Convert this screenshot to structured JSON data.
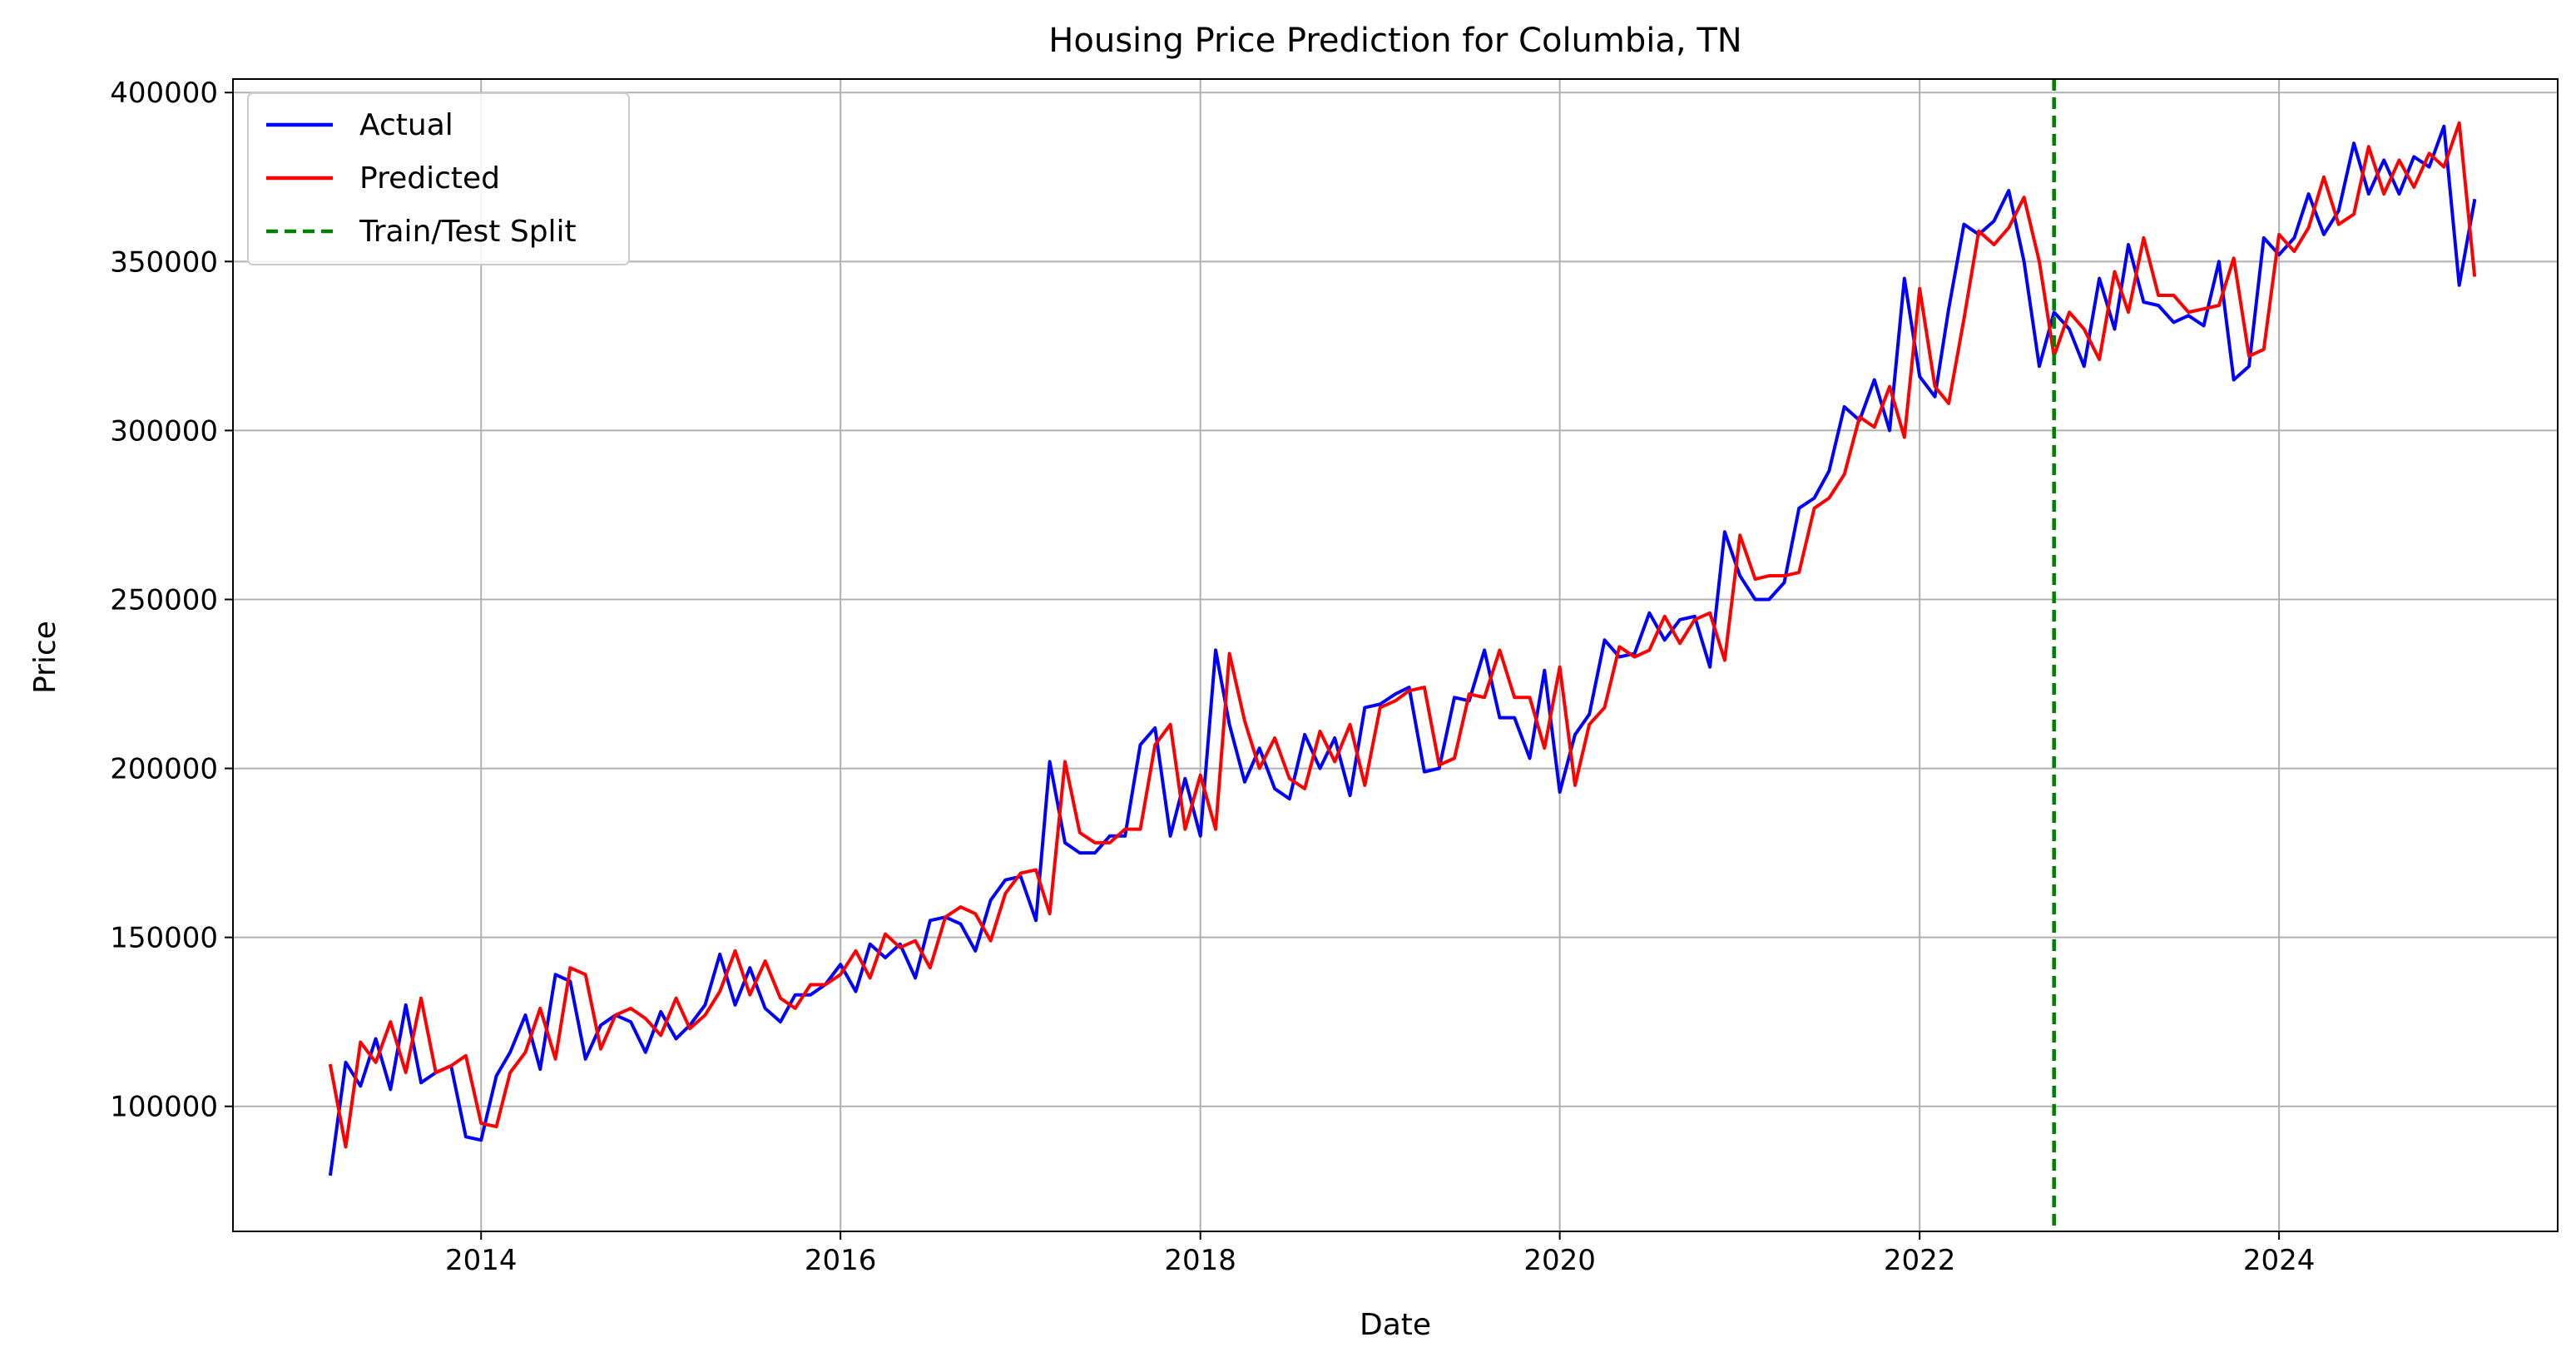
{
  "chart_data": {
    "type": "line",
    "title": "Housing Price Prediction for Columbia, TN",
    "xlabel": "Date",
    "ylabel": "Price",
    "x_axis_type": "date",
    "xlim": [
      "2012-08-15",
      "2025-07-20"
    ],
    "ylim": [
      63000,
      404000
    ],
    "x_ticks": [
      "2014",
      "2016",
      "2018",
      "2020",
      "2022",
      "2024"
    ],
    "y_ticks": [
      100000,
      150000,
      200000,
      250000,
      300000,
      350000,
      400000
    ],
    "grid": true,
    "legend_position": "top-left",
    "legend": [
      "Actual",
      "Predicted",
      "Train/Test Split"
    ],
    "split_date": "2022-10-01",
    "colors": {
      "actual": "#0000ff",
      "predicted": "#ff0000",
      "split": "#008000",
      "grid": "#b0b0b0"
    },
    "x": [
      "2013-03-01",
      "2013-04-01",
      "2013-05-01",
      "2013-06-01",
      "2013-07-01",
      "2013-08-01",
      "2013-09-01",
      "2013-10-01",
      "2013-11-01",
      "2013-12-01",
      "2014-01-01",
      "2014-02-01",
      "2014-03-01",
      "2014-04-01",
      "2014-05-01",
      "2014-06-01",
      "2014-07-01",
      "2014-08-01",
      "2014-09-01",
      "2014-10-01",
      "2014-11-01",
      "2014-12-01",
      "2015-01-01",
      "2015-02-01",
      "2015-03-01",
      "2015-04-01",
      "2015-05-01",
      "2015-06-01",
      "2015-07-01",
      "2015-08-01",
      "2015-09-01",
      "2015-10-01",
      "2015-11-01",
      "2015-12-01",
      "2016-01-01",
      "2016-02-01",
      "2016-03-01",
      "2016-04-01",
      "2016-05-01",
      "2016-06-01",
      "2016-07-01",
      "2016-08-01",
      "2016-09-01",
      "2016-10-01",
      "2016-11-01",
      "2016-12-01",
      "2017-01-01",
      "2017-02-01",
      "2017-03-01",
      "2017-04-01",
      "2017-05-01",
      "2017-06-01",
      "2017-07-01",
      "2017-08-01",
      "2017-09-01",
      "2017-10-01",
      "2017-11-01",
      "2017-12-01",
      "2018-01-01",
      "2018-02-01",
      "2018-03-01",
      "2018-04-01",
      "2018-05-01",
      "2018-06-01",
      "2018-07-01",
      "2018-08-01",
      "2018-09-01",
      "2018-10-01",
      "2018-11-01",
      "2018-12-01",
      "2019-01-01",
      "2019-02-01",
      "2019-03-01",
      "2019-04-01",
      "2019-05-01",
      "2019-06-01",
      "2019-07-01",
      "2019-08-01",
      "2019-09-01",
      "2019-10-01",
      "2019-11-01",
      "2019-12-01",
      "2020-01-01",
      "2020-02-01",
      "2020-03-01",
      "2020-04-01",
      "2020-05-01",
      "2020-06-01",
      "2020-07-01",
      "2020-08-01",
      "2020-09-01",
      "2020-10-01",
      "2020-11-01",
      "2020-12-01",
      "2021-01-01",
      "2021-02-01",
      "2021-03-01",
      "2021-04-01",
      "2021-05-01",
      "2021-06-01",
      "2021-07-01",
      "2021-08-01",
      "2021-09-01",
      "2021-10-01",
      "2021-11-01",
      "2021-12-01",
      "2022-01-01",
      "2022-02-01",
      "2022-03-01",
      "2022-04-01",
      "2022-05-01",
      "2022-06-01",
      "2022-07-01",
      "2022-08-01",
      "2022-09-01",
      "2022-10-01",
      "2022-11-01",
      "2022-12-01",
      "2023-01-01",
      "2023-02-01",
      "2023-03-01",
      "2023-04-01",
      "2023-05-01",
      "2023-06-01",
      "2023-07-01",
      "2023-08-01",
      "2023-09-01",
      "2023-10-01",
      "2023-11-01",
      "2023-12-01",
      "2024-01-01",
      "2024-02-01",
      "2024-03-01",
      "2024-04-01",
      "2024-05-01",
      "2024-06-01",
      "2024-07-01",
      "2024-08-01",
      "2024-09-01",
      "2024-10-01",
      "2024-11-01",
      "2024-12-01",
      "2025-01-01",
      "2025-02-01"
    ],
    "series": [
      {
        "name": "Actual",
        "values": [
          80000,
          113000,
          106000,
          120000,
          105000,
          130000,
          107000,
          110000,
          112000,
          91000,
          90000,
          109000,
          116000,
          127000,
          111000,
          139000,
          137000,
          114000,
          124000,
          127000,
          125000,
          116000,
          128000,
          120000,
          124000,
          130000,
          145000,
          130000,
          141000,
          129000,
          125000,
          133000,
          133000,
          136000,
          142000,
          134000,
          148000,
          144000,
          148000,
          138000,
          155000,
          156000,
          154000,
          146000,
          161000,
          167000,
          168000,
          155000,
          202000,
          178000,
          175000,
          175000,
          180000,
          180000,
          207000,
          212000,
          180000,
          197000,
          180000,
          235000,
          213000,
          196000,
          206000,
          194000,
          191000,
          210000,
          200000,
          209000,
          192000,
          218000,
          219000,
          222000,
          224000,
          199000,
          200000,
          221000,
          220000,
          235000,
          215000,
          215000,
          203000,
          229000,
          193000,
          210000,
          216000,
          238000,
          233000,
          234000,
          246000,
          238000,
          244000,
          245000,
          230000,
          270000,
          257000,
          250000,
          250000,
          255000,
          277000,
          280000,
          288000,
          307000,
          303000,
          315000,
          300000,
          345000,
          316000,
          310000,
          336000,
          361000,
          358000,
          362000,
          371000,
          350000,
          319000,
          335000,
          330000,
          319000,
          345000,
          330000,
          355000,
          338000,
          337000,
          332000,
          334000,
          331000,
          350000,
          315000,
          319000,
          357000,
          352000,
          357000,
          370000,
          358000,
          365000,
          385000,
          370000,
          380000,
          370000,
          381000,
          378000,
          390000,
          343000,
          368000
        ],
        "color": "#0000ff"
      },
      {
        "name": "Predicted",
        "values": [
          112000,
          88000,
          119000,
          113000,
          125000,
          110000,
          132000,
          110000,
          112000,
          115000,
          95000,
          94000,
          110000,
          116000,
          129000,
          114000,
          141000,
          139000,
          117000,
          127000,
          129000,
          126000,
          121000,
          132000,
          123000,
          127000,
          134000,
          146000,
          133000,
          143000,
          132000,
          129000,
          136000,
          136000,
          139000,
          146000,
          138000,
          151000,
          147000,
          149000,
          141000,
          156000,
          159000,
          157000,
          149000,
          163000,
          169000,
          170000,
          157000,
          202000,
          181000,
          178000,
          178000,
          182000,
          182000,
          207000,
          213000,
          182000,
          198000,
          182000,
          234000,
          214000,
          200000,
          209000,
          197000,
          194000,
          211000,
          202000,
          213000,
          195000,
          218000,
          220000,
          223000,
          224000,
          201000,
          203000,
          222000,
          221000,
          235000,
          221000,
          221000,
          206000,
          230000,
          195000,
          213000,
          218000,
          236000,
          233000,
          235000,
          245000,
          237000,
          244000,
          246000,
          232000,
          269000,
          256000,
          257000,
          257000,
          258000,
          277000,
          280000,
          287000,
          304000,
          301000,
          313000,
          298000,
          342000,
          313000,
          308000,
          333000,
          359000,
          355000,
          360000,
          369000,
          350000,
          322000,
          335000,
          330000,
          321000,
          347000,
          335000,
          357000,
          340000,
          340000,
          335000,
          336000,
          337000,
          351000,
          322000,
          324000,
          358000,
          353000,
          360000,
          375000,
          361000,
          364000,
          384000,
          370000,
          380000,
          372000,
          382000,
          378000,
          391000,
          346000
        ],
        "color": "#ff0000"
      }
    ]
  }
}
